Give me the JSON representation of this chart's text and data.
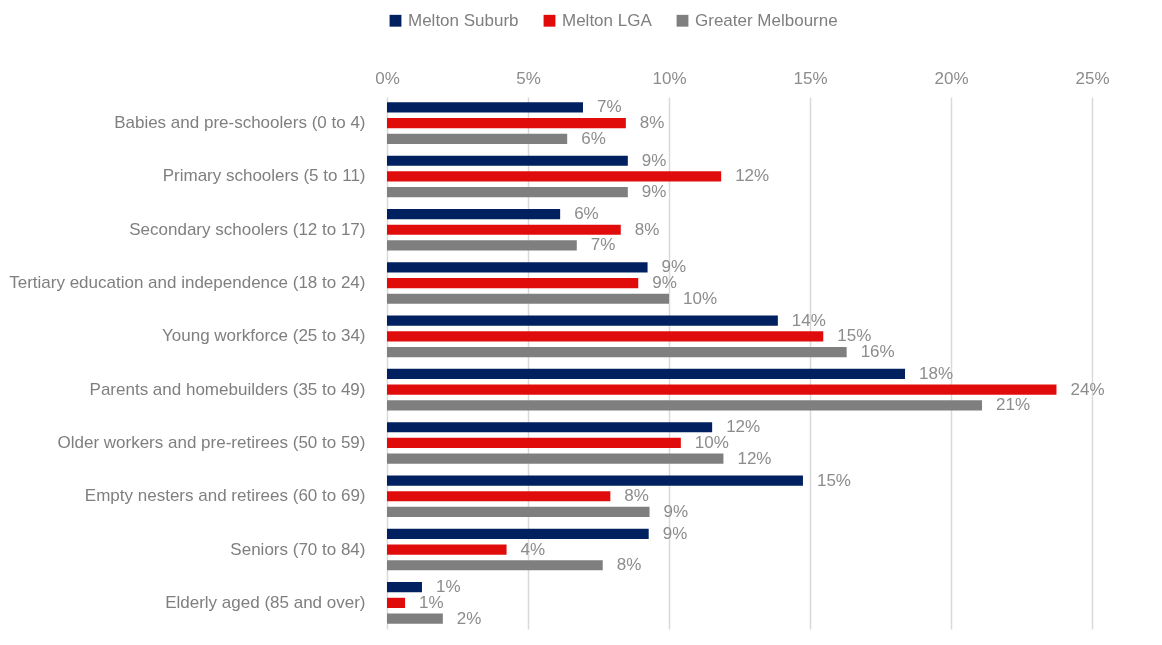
{
  "chart_data": {
    "type": "bar",
    "orientation": "horizontal",
    "categories": [
      "Babies and pre-schoolers (0 to 4)",
      "Primary schoolers (5 to 11)",
      "Secondary schoolers (12 to 17)",
      "Tertiary education and independence (18 to 24)",
      "Young workforce (25 to 34)",
      "Parents and homebuilders (35 to 49)",
      "Older workers and pre-retirees (50 to 59)",
      "Empty nesters and retirees (60 to 69)",
      "Seniors (70 to 84)",
      "Elderly aged (85 and over)"
    ],
    "series": [
      {
        "name": "Melton Suburb",
        "color": "#002060",
        "values": [
          6.95,
          8.54,
          6.14,
          9.24,
          13.86,
          18.37,
          11.53,
          14.75,
          9.28,
          1.24
        ],
        "value_labels": [
          "7%",
          "9%",
          "6%",
          "9%",
          "14%",
          "18%",
          "12%",
          "15%",
          "9%",
          "1%"
        ]
      },
      {
        "name": "Melton LGA",
        "color": "#e00c0c",
        "values": [
          8.47,
          11.85,
          8.29,
          8.91,
          15.47,
          23.74,
          10.42,
          7.92,
          4.24,
          0.64
        ],
        "value_labels": [
          "8%",
          "12%",
          "8%",
          "9%",
          "15%",
          "24%",
          "10%",
          "8%",
          "4%",
          "1%"
        ]
      },
      {
        "name": "Greater Melbourne",
        "color": "#7f7f7f",
        "values": [
          6.39,
          8.54,
          6.73,
          10.0,
          16.3,
          21.1,
          11.93,
          9.31,
          7.65,
          1.98
        ],
        "value_labels": [
          "6%",
          "9%",
          "7%",
          "10%",
          "16%",
          "21%",
          "12%",
          "9%",
          "8%",
          "2%"
        ]
      }
    ],
    "xlim": [
      0,
      25
    ],
    "xticks": [
      {
        "value": 0,
        "label": "0%"
      },
      {
        "value": 5,
        "label": "5%"
      },
      {
        "value": 10,
        "label": "10%"
      },
      {
        "value": 15,
        "label": "15%"
      },
      {
        "value": 20,
        "label": "20%"
      },
      {
        "value": 25,
        "label": "25%"
      }
    ],
    "grid": "x",
    "legend": "top"
  }
}
